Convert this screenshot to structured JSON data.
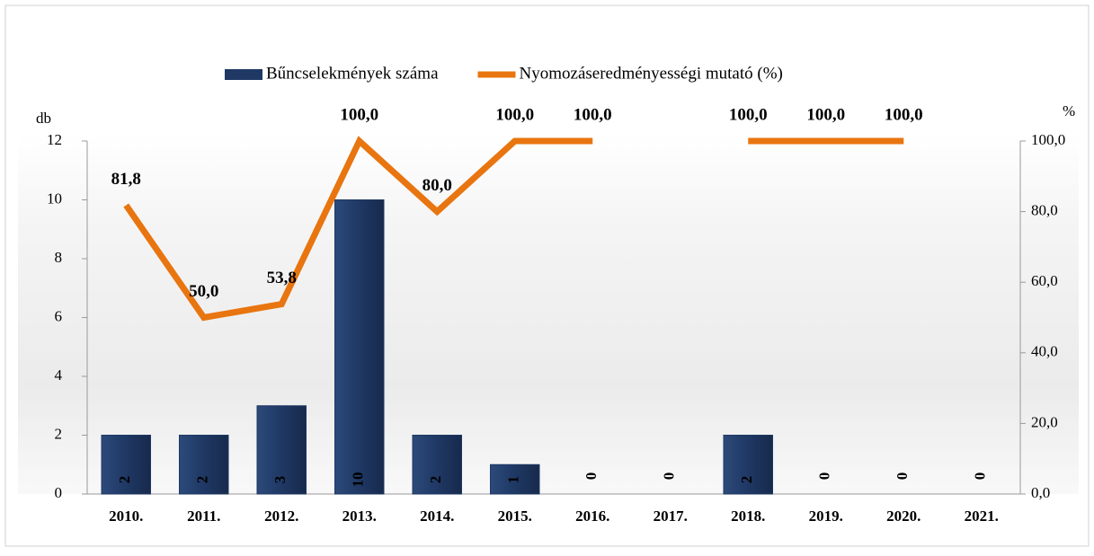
{
  "chart_data": {
    "type": "bar-line",
    "categories": [
      "2010.",
      "2011.",
      "2012.",
      "2013.",
      "2014.",
      "2015.",
      "2016.",
      "2017.",
      "2018.",
      "2019.",
      "2020.",
      "2021."
    ],
    "series": [
      {
        "name": "Bűncselekmények száma",
        "type": "bar",
        "axis": "y",
        "color": "#1f3864",
        "values": [
          2,
          2,
          3,
          10,
          2,
          1,
          0,
          0,
          2,
          0,
          0,
          0
        ]
      },
      {
        "name": "Nyomozáseredményességi mutató (%)",
        "type": "line",
        "axis": "y2",
        "color": "#e8750f",
        "values": [
          81.8,
          50.0,
          53.8,
          100.0,
          80.0,
          100.0,
          100.0,
          null,
          100.0,
          100.0,
          100.0,
          null
        ],
        "value_labels": [
          "81,8",
          "50,0",
          "53,8",
          "100,0",
          "80,0",
          "100,0",
          "100,0",
          null,
          "100,0",
          "100,0",
          "100,0",
          null
        ]
      }
    ],
    "ylabel": "db",
    "y2label": "%",
    "ylim": [
      0,
      12
    ],
    "yticks": [
      0,
      2,
      4,
      6,
      8,
      10,
      12
    ],
    "y2lim": [
      0,
      100
    ],
    "y2ticks": [
      {
        "value": 0,
        "label": "0,0"
      },
      {
        "value": 20,
        "label": "20,0"
      },
      {
        "value": 40,
        "label": "40,0"
      },
      {
        "value": 60,
        "label": "60,0"
      },
      {
        "value": 80,
        "label": "80,0"
      },
      {
        "value": 100,
        "label": "100,0"
      }
    ]
  }
}
